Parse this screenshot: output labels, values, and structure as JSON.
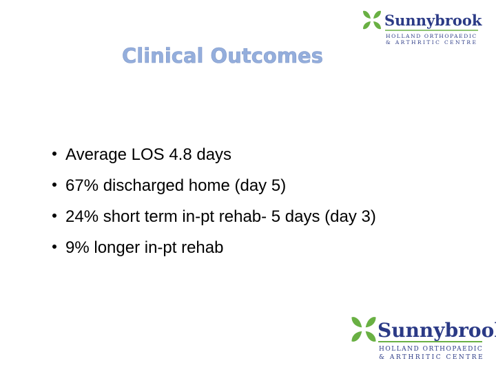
{
  "title": "Clinical Outcomes",
  "bullets": [
    "Average LOS 4.8 days",
    "67% discharged home (day 5)",
    "24% short term in-pt rehab- 5 days (day 3)",
    "9% longer in-pt rehab"
  ],
  "logos": [
    {
      "name": "Sunnybrook",
      "line1": "HOLLAND ORTHOPAEDIC",
      "line2": "& ARTHRITIC CENTRE"
    },
    {
      "name": "Sunnybrook",
      "line1": "HOLLAND ORTHOPAEDIC",
      "line2": "& ARTHRITIC CENTRE"
    }
  ]
}
